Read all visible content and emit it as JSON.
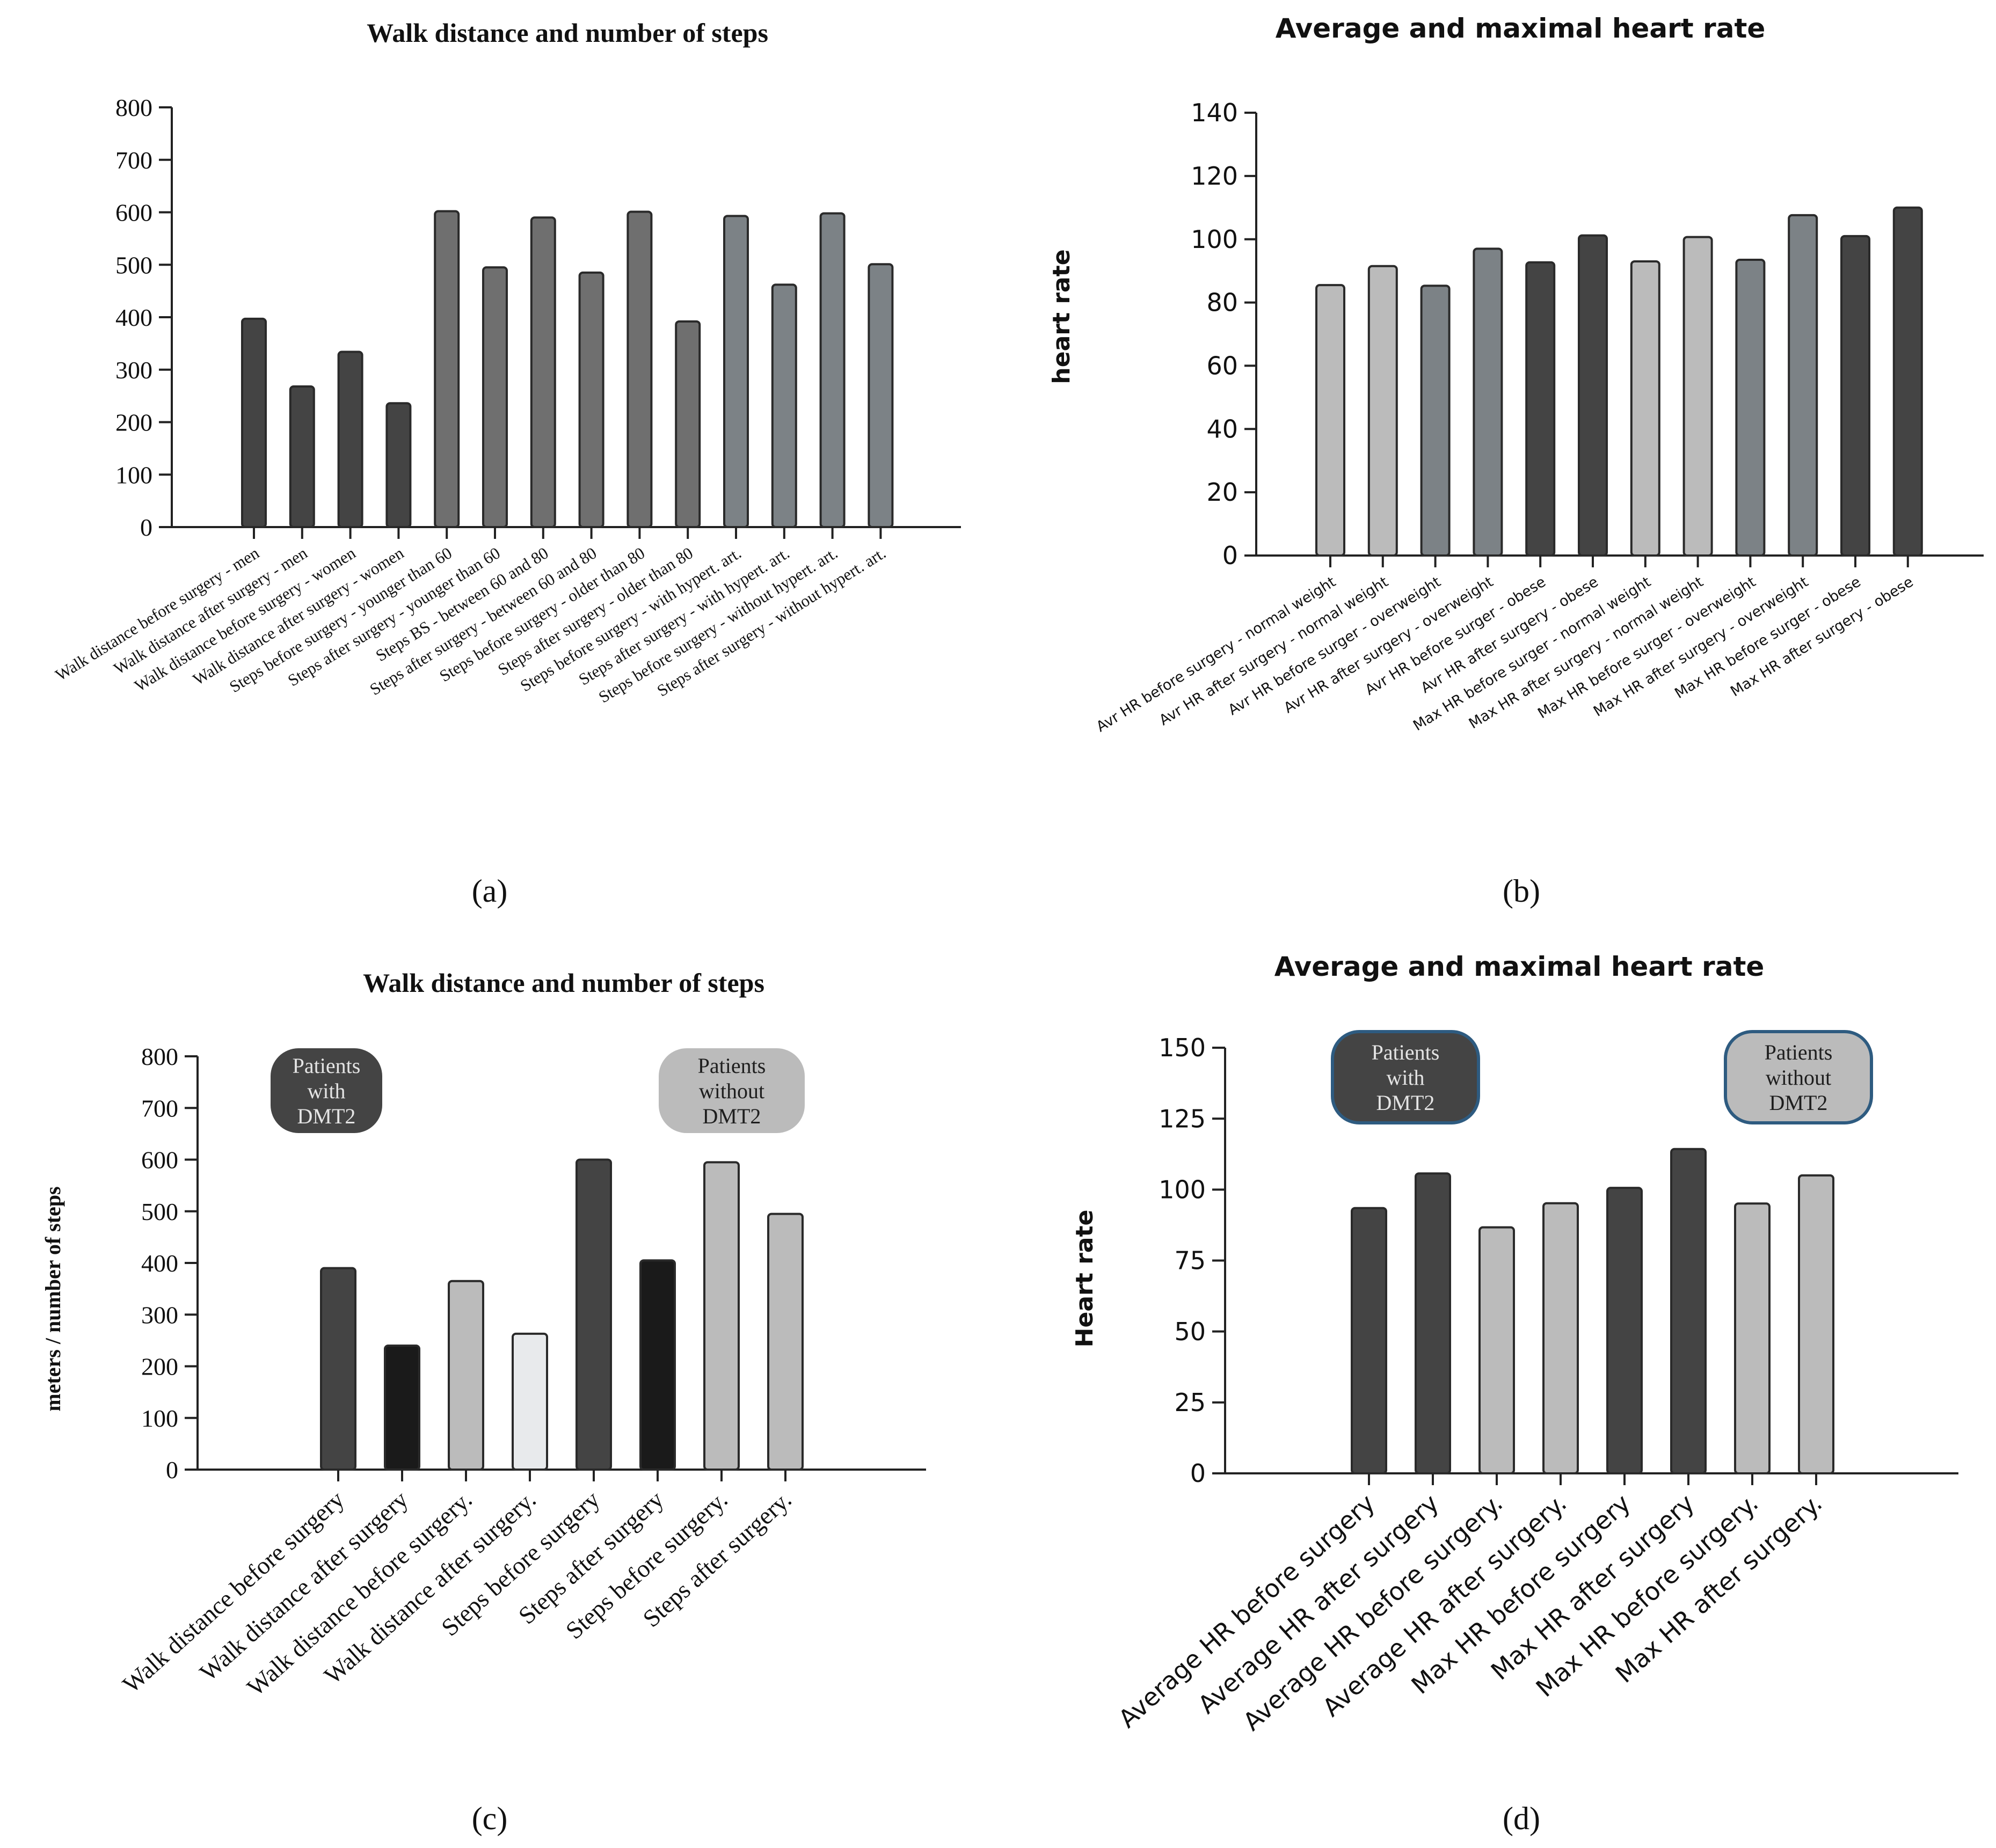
{
  "figure": {
    "panel_labels": [
      "(a)",
      "(b)",
      "(c)",
      "(d)"
    ]
  },
  "colors": {
    "axis": "#222222",
    "bar_stroke": "#2a2a2a",
    "dark": "#444444",
    "black": "#1a1a1a",
    "mid_gray": "#6f6f6f",
    "slate": "#7c8286",
    "light": "#bbbbbb",
    "very_light": "#e8eaec",
    "badge_border": "#2e5b80"
  },
  "chart_data": [
    {
      "panel": "a",
      "type": "bar",
      "title": "Walk distance and number of steps",
      "xlabel": "",
      "ylabel": "",
      "ylim": [
        0,
        800
      ],
      "yticks": [
        0,
        100,
        200,
        300,
        400,
        500,
        600,
        700,
        800
      ],
      "grid": false,
      "categories": [
        "Walk distance before surgery - men",
        "Walk distance after surgery - men",
        "Walk distance before surgery - women",
        "Walk distance after surgery - women",
        "Steps before surgery - younger than 60",
        "Steps after surgery - younger than 60",
        "Steps BS - between 60 and 80",
        "Steps after surgery - between 60 and 80",
        "Steps before surgery - older than 80",
        "Steps after surgery - older than 80",
        "Steps before surgery - with hypert. art.",
        "Steps after surgery - with hypert. art.",
        "Steps before surgery - without hypert. art.",
        "Steps after surgery - without hypert. art."
      ],
      "values": [
        397,
        268,
        334,
        236,
        602,
        495,
        590,
        485,
        601,
        392,
        593,
        462,
        598,
        501
      ],
      "bar_colors": [
        "#444444",
        "#444444",
        "#444444",
        "#444444",
        "#6f6f6f",
        "#6f6f6f",
        "#6f6f6f",
        "#6f6f6f",
        "#6f6f6f",
        "#6f6f6f",
        "#7c8286",
        "#7c8286",
        "#7c8286",
        "#7c8286"
      ]
    },
    {
      "panel": "b",
      "type": "bar",
      "title": "Average and maximal heart rate",
      "xlabel": "",
      "ylabel": "heart rate",
      "ylim": [
        0,
        140
      ],
      "yticks": [
        0,
        20,
        40,
        60,
        80,
        100,
        120,
        140
      ],
      "grid": false,
      "categories": [
        "Avr HR before surgery - normal weight",
        "Avr HR after surgery - normal weight",
        "Avr HR before surger - overweight",
        "Avr HR after surgery - overweight",
        "Avr HR before surger - obese",
        "Avr HR after surgery - obese",
        "Max HR before surger - normal weight",
        "Max HR after surgery - normal weight",
        "Max HR before surger - overweight",
        "Max HR after surgery - overweight",
        "Max HR before surger - obese",
        "Max HR after surgery - obese"
      ],
      "values": [
        85.5,
        91.5,
        85.3,
        97,
        92.7,
        101.2,
        93,
        100.7,
        93.5,
        107.6,
        101,
        110
      ],
      "bar_colors": [
        "#bbbbbb",
        "#bbbbbb",
        "#7c8286",
        "#7c8286",
        "#444444",
        "#444444",
        "#bbbbbb",
        "#bbbbbb",
        "#7c8286",
        "#7c8286",
        "#444444",
        "#444444"
      ]
    },
    {
      "panel": "c",
      "type": "bar",
      "title": "Walk distance and number of steps",
      "xlabel": "",
      "ylabel": "meters / number of steps",
      "ylim": [
        0,
        800
      ],
      "yticks": [
        0,
        100,
        200,
        300,
        400,
        500,
        600,
        700,
        800
      ],
      "grid": false,
      "categories": [
        "Walk distance before surgery",
        "Walk distance after surgery",
        "Walk distance before surgery.",
        "Walk distance after surgery.",
        "Steps before surgery",
        "Steps after surgery",
        "Steps before surgery.",
        "Steps after surgery."
      ],
      "values": [
        390,
        240,
        365,
        263,
        600,
        405,
        595,
        495
      ],
      "bar_colors": [
        "#444444",
        "#1a1a1a",
        "#bbbbbb",
        "#e8eaec",
        "#444444",
        "#1a1a1a",
        "#bbbbbb",
        "#bbbbbb"
      ],
      "annotations": [
        {
          "text": [
            "Patients",
            "with",
            "DMT2"
          ],
          "style": "dark"
        },
        {
          "text": [
            "Patients",
            "without",
            "DMT2"
          ],
          "style": "light"
        }
      ]
    },
    {
      "panel": "d",
      "type": "bar",
      "title": "Average and maximal heart rate",
      "xlabel": "",
      "ylabel": "Heart rate",
      "ylim": [
        0,
        150
      ],
      "yticks": [
        0,
        25,
        50,
        75,
        100,
        125,
        150
      ],
      "grid": false,
      "categories": [
        "Average HR before surgery",
        "Average HR after surgery",
        "Average HR before surgery.",
        "Average HR after surgery.",
        "Max HR before surgery",
        "Max HR after surgery",
        "Max HR before surgery.",
        "Max HR after surgery."
      ],
      "values": [
        93.5,
        105.7,
        86.7,
        95.2,
        100.6,
        114.3,
        95.1,
        105
      ],
      "bar_colors": [
        "#444444",
        "#444444",
        "#bbbbbb",
        "#bbbbbb",
        "#444444",
        "#444444",
        "#bbbbbb",
        "#bbbbbb"
      ],
      "annotations": [
        {
          "text": [
            "Patients",
            "with",
            "DMT2"
          ],
          "style": "dark"
        },
        {
          "text": [
            "Patients",
            "without",
            "DMT2"
          ],
          "style": "light"
        }
      ]
    }
  ]
}
